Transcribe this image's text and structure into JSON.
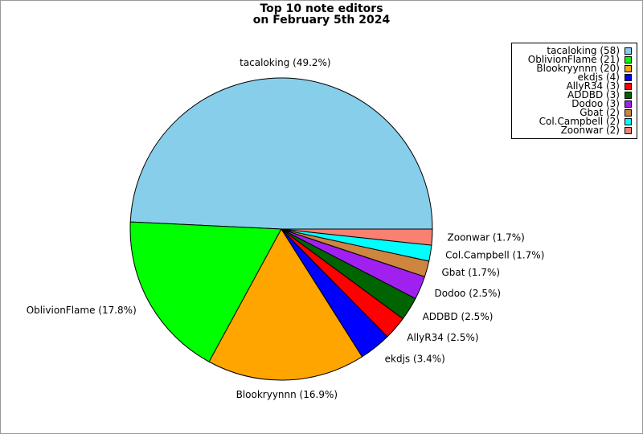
{
  "chart_data": {
    "type": "pie",
    "title": [
      "Top 10 note editors",
      "on February 5th 2024"
    ],
    "values": [
      49.2,
      17.8,
      16.9,
      3.4,
      2.5,
      2.5,
      2.5,
      1.7,
      1.7,
      1.7
    ],
    "value_labels": [
      "tacaloking (49.2%)",
      "OblivionFlame (17.8%)",
      "Blookryynnn (16.9%)",
      "ekdjs (3.4%)",
      "AllyR34 (2.5%)",
      "ADDBD (2.5%)",
      "Dodoo (2.5%)",
      "Gbat (1.7%)",
      "Col.Campbell (1.7%)",
      "Zoonwar (1.7%)"
    ],
    "legend_labels": [
      "tacaloking (58)",
      "OblivionFlame (21)",
      "Blookryynnn (20)",
      "ekdjs (4)",
      "AllyR34 (3)",
      "ADDBD (3)",
      "Dodoo (3)",
      "Gbat (2)",
      "Col.Campbell (2)",
      "Zoonwar (2)"
    ],
    "colors": [
      "#87ceeb",
      "#00ff00",
      "#ffa500",
      "#0000ff",
      "#ff0000",
      "#006400",
      "#a020f0",
      "#cd853f",
      "#00ffff",
      "#fa8072"
    ],
    "legend": "upper right"
  }
}
